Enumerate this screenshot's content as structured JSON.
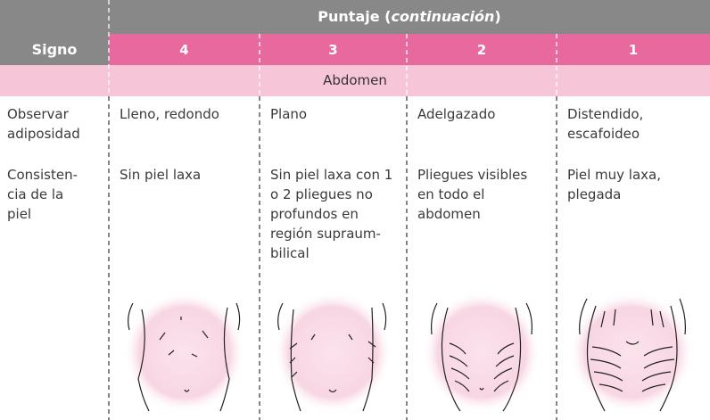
{
  "header": {
    "title_prefix": "Puntaje (",
    "title_italic": "continuación",
    "title_suffix": ")"
  },
  "table": {
    "columns": [
      "Signo",
      "4",
      "3",
      "2",
      "1"
    ],
    "section": "Abdomen",
    "rows": [
      [
        "Observar adiposidad",
        "Lleno, redondo",
        "Plano",
        "Adelgazado",
        "Distendido, escafoideo"
      ],
      [
        "Consisten­cia de la piel",
        "Sin piel laxa",
        "Sin piel laxa con 1 o 2 pliegues no profundos en región supraum­bilical",
        "Pliegues visibles en todo el abdomen",
        "Piel muy laxa, plegada"
      ]
    ]
  }
}
